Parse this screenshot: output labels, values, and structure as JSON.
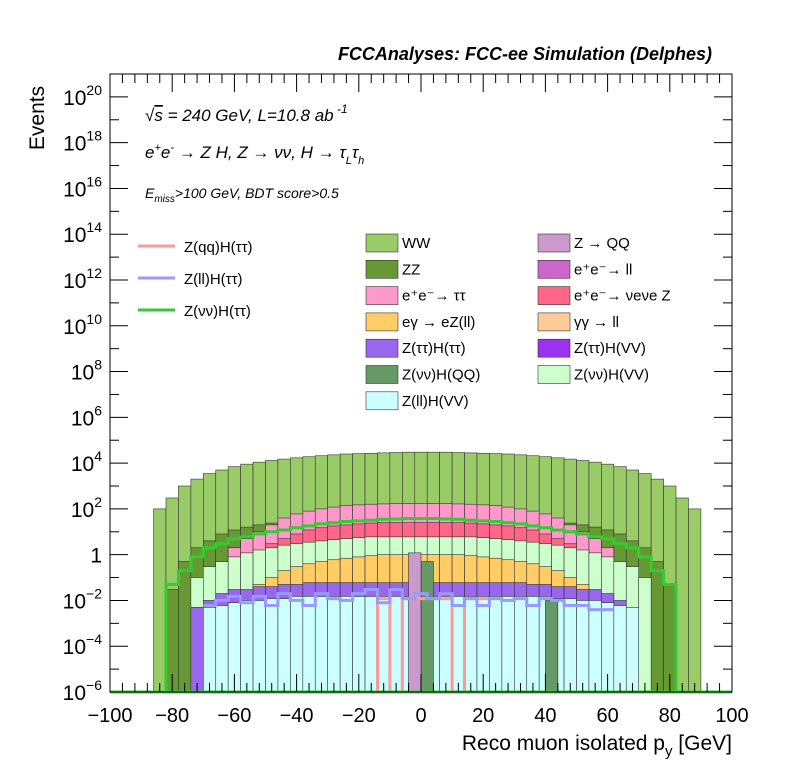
{
  "chart_data": {
    "type": "histogram",
    "title": "FCCAnalyses: FCC-ee Simulation (Delphes)",
    "annotations": {
      "energy_lumi": "√s = 240 GeV, L=10.8 ab⁻¹",
      "process": "e⁺e⁻ → Z H, Z → νν, H → τ_L τ_h",
      "selection": "E_miss>100 GeV, BDT score>0.5"
    },
    "xlabel": "Reco muon isolated p_y [GeV]",
    "ylabel": "Events",
    "xlim": [
      -100,
      100
    ],
    "ylim": [
      1e-06,
      1e+21
    ],
    "log_y": true,
    "x_ticks": [
      -100,
      -80,
      -60,
      -40,
      -20,
      0,
      20,
      40,
      60,
      80,
      100
    ],
    "x_tick_labels": [
      "−100",
      "−80",
      "−60",
      "−40",
      "−20",
      "0",
      "20",
      "40",
      "60",
      "80",
      "100"
    ],
    "y_ticks": [
      1e-06,
      0.0001,
      0.01,
      1,
      100.0,
      10000.0,
      1000000.0,
      100000000.0,
      10000000000.0,
      1000000000000.0,
      100000000000000.0,
      1e+16,
      1e+18,
      1e+20
    ],
    "y_tick_labels": [
      {
        "base": "10",
        "exp": "−6"
      },
      {
        "base": "10",
        "exp": "−4"
      },
      {
        "base": "10",
        "exp": "−2"
      },
      {
        "base": "1",
        "exp": ""
      },
      {
        "base": "10",
        "exp": "2"
      },
      {
        "base": "10",
        "exp": "4"
      },
      {
        "base": "10",
        "exp": "6"
      },
      {
        "base": "10",
        "exp": "8"
      },
      {
        "base": "10",
        "exp": "10"
      },
      {
        "base": "10",
        "exp": "12"
      },
      {
        "base": "10",
        "exp": "14"
      },
      {
        "base": "10",
        "exp": "16"
      },
      {
        "base": "10",
        "exp": "18"
      },
      {
        "base": "10",
        "exp": "20"
      }
    ],
    "bin_width": 4,
    "stack_bins": [
      -86,
      -82,
      -78,
      -74,
      -70,
      -66,
      -62,
      -58,
      -54,
      -50,
      -46,
      -42,
      -38,
      -34,
      -30,
      -26,
      -22,
      -18,
      -14,
      -10,
      -6,
      -2,
      2,
      6,
      10,
      14,
      18,
      22,
      26,
      30,
      34,
      38,
      42,
      46,
      50,
      54,
      58,
      62,
      66,
      70,
      74,
      78,
      82,
      86
    ],
    "stack_layers": [
      {
        "name": "WW",
        "color": "#99cc66",
        "tops": [
          100,
          300,
          1000,
          2000,
          3500,
          5000,
          7000,
          9000,
          11000,
          13000,
          15000,
          17000,
          19000,
          21000,
          23000,
          25000,
          26000,
          27000,
          28000,
          29000,
          30000,
          30000,
          30000,
          30000,
          29000,
          28000,
          27000,
          26000,
          25000,
          23000,
          21000,
          19000,
          17000,
          15000,
          13000,
          11000,
          9000,
          7000,
          5000,
          3500,
          2000,
          1000,
          300,
          100
        ]
      },
      {
        "name": "ZZ",
        "color": "#669933",
        "tops": [
          0,
          0.03,
          0.5,
          2,
          4,
          8,
          12,
          16,
          20,
          24,
          30,
          36,
          42,
          50,
          56,
          60,
          64,
          66,
          68,
          70,
          70,
          70,
          70,
          70,
          68,
          66,
          64,
          60,
          56,
          50,
          42,
          36,
          30,
          24,
          20,
          16,
          12,
          8,
          4,
          2,
          0.5,
          0.05,
          0,
          0
        ]
      },
      {
        "name": "e⁺e⁻→ ττ",
        "color": "#ff99cc",
        "tops": [
          0,
          0,
          0,
          0,
          0,
          0.5,
          2,
          5,
          10,
          20,
          40,
          60,
          80,
          100,
          120,
          140,
          150,
          160,
          165,
          170,
          170,
          170,
          170,
          170,
          165,
          160,
          150,
          140,
          120,
          100,
          80,
          60,
          40,
          20,
          10,
          5,
          2,
          0.5,
          0,
          0,
          0,
          0,
          0,
          0
        ]
      },
      {
        "name": "e⁺e⁻→ νeνe Z",
        "color": "#ff6688",
        "tops": [
          0,
          0,
          0,
          0,
          0,
          0,
          0.2,
          0.6,
          1.5,
          3,
          5,
          8,
          12,
          15,
          18,
          20,
          22,
          24,
          25,
          25,
          25,
          25,
          25,
          25,
          25,
          24,
          22,
          20,
          18,
          15,
          12,
          8,
          5,
          3,
          1.5,
          0.6,
          0.2,
          0,
          0,
          0,
          0,
          0,
          0,
          0
        ]
      },
      {
        "name": "Z(νν)H(VV)",
        "color": "#ccffcc",
        "tops": [
          0,
          0,
          0,
          0.1,
          0.3,
          0.5,
          0.8,
          1.2,
          1.6,
          2,
          2.6,
          3,
          3.5,
          4,
          4.5,
          5,
          5.5,
          6,
          6,
          6,
          6,
          6,
          6,
          6,
          6,
          6,
          5.5,
          5,
          4.5,
          4,
          3.5,
          3,
          2.6,
          2,
          1.6,
          1.2,
          0.8,
          0.5,
          0.3,
          0.1,
          0,
          0,
          0,
          0
        ]
      },
      {
        "name": "eγ → eZ(ll)",
        "color": "#ffcc66",
        "tops": [
          0,
          0,
          0,
          0,
          0,
          0,
          0,
          0,
          0.05,
          0.1,
          0.2,
          0.3,
          0.4,
          0.5,
          0.6,
          0.7,
          0.8,
          0.9,
          1,
          1,
          1,
          1,
          1,
          1,
          1,
          0.9,
          0.8,
          0.7,
          0.6,
          0.5,
          0.4,
          0.3,
          0.2,
          0.1,
          0.05,
          0,
          0,
          0,
          0,
          0,
          0,
          0,
          0,
          0
        ]
      },
      {
        "name": "Z(ττ)H(ττ)",
        "color": "#9966ee",
        "tops": [
          0,
          0,
          0,
          0.005,
          0.01,
          0.02,
          0.03,
          0.03,
          0.04,
          0.04,
          0.05,
          0.05,
          0.06,
          0.06,
          0.06,
          0.06,
          0.06,
          0.06,
          0.06,
          0.06,
          0.06,
          0.06,
          0.06,
          0.06,
          0.06,
          0.06,
          0.06,
          0.06,
          0.06,
          0.06,
          0.05,
          0.05,
          0.04,
          0.04,
          0.03,
          0.03,
          0.02,
          0.01,
          0.005,
          0,
          0,
          0,
          0,
          0
        ]
      },
      {
        "name": "Z(ll)H(VV)",
        "color": "#ccffff",
        "tops": [
          0,
          0,
          0,
          0,
          0.005,
          0.006,
          0.008,
          0.01,
          0.01,
          0.012,
          0.012,
          0.015,
          0.015,
          0.015,
          0.015,
          0.015,
          0.015,
          0.015,
          0.015,
          0.015,
          0.015,
          0.015,
          0.015,
          0.015,
          0.015,
          0.015,
          0.015,
          0.015,
          0.015,
          0.015,
          0.015,
          0.015,
          0.012,
          0.012,
          0.01,
          0.01,
          0.008,
          0.006,
          0.005,
          0,
          0,
          0,
          0,
          0
        ]
      }
    ],
    "spikes": [
      {
        "name": "Z(νν)H(QQ)",
        "color": "#669966",
        "x": 2,
        "top": 0.5
      },
      {
        "name": "Z(νν)H(QQ)",
        "color": "#669966",
        "x": 42,
        "top": 0.01
      },
      {
        "name": "Z → QQ",
        "color": "#cc99cc",
        "x": -2,
        "top": 1.2
      }
    ],
    "lines": [
      {
        "name": "Z(qq)H(ττ)",
        "color": "#ff9999",
        "x": [
          -18,
          -14,
          -14,
          -10,
          -10,
          -6,
          -6,
          10,
          10,
          14,
          14,
          18
        ],
        "y": [
          1e-06,
          1e-06,
          0.012,
          0.012,
          1e-06,
          1e-06,
          0.012,
          0.012,
          1e-06,
          1e-06,
          0.012,
          0.012
        ]
      },
      {
        "name": "Z(ll)H(ττ)",
        "color": "#9999ff",
        "x": [
          -70,
          -66,
          -62,
          -58,
          -54,
          -50,
          -46,
          -42,
          -38,
          -34,
          -30,
          -26,
          -22,
          -18,
          -14,
          -10,
          -6,
          -2,
          2,
          6,
          10,
          14,
          18,
          22,
          26,
          30,
          34,
          38,
          42,
          46,
          50,
          54,
          58
        ],
        "y": [
          0.006,
          0.01,
          0.015,
          0.008,
          0.015,
          0.006,
          0.02,
          0.01,
          0.006,
          0.02,
          0.012,
          0.01,
          0.02,
          0.03,
          0.008,
          0.03,
          0.012,
          0.02,
          0.012,
          0.02,
          0.006,
          0.012,
          0.006,
          0.012,
          0.01,
          0.012,
          0.006,
          0.012,
          0.01,
          0.006,
          0.006,
          0.004,
          0.004
        ]
      },
      {
        "name": "Z(νν)H(ττ)",
        "color": "#33cc33",
        "x": [
          -86,
          -82,
          -78,
          -74,
          -70,
          -66,
          -62,
          -58,
          -54,
          -50,
          -46,
          -42,
          -38,
          -34,
          -30,
          -26,
          -22,
          -18,
          -14,
          -10,
          -6,
          -2,
          2,
          6,
          10,
          14,
          18,
          22,
          26,
          30,
          34,
          38,
          42,
          46,
          50,
          54,
          58,
          62,
          66,
          70,
          74,
          78,
          82
        ],
        "y": [
          1e-06,
          0.05,
          0.2,
          0.8,
          2,
          3,
          5,
          6,
          8,
          10,
          12,
          15,
          18,
          22,
          25,
          28,
          30,
          32,
          35,
          36,
          38,
          38,
          38,
          36,
          35,
          32,
          30,
          28,
          25,
          22,
          18,
          15,
          12,
          10,
          8,
          6,
          5,
          3,
          2,
          0.8,
          0.2,
          0.05,
          1e-06
        ]
      }
    ],
    "legend_left": [
      {
        "label": "Z(qq)H(ττ)",
        "color": "#ff9999",
        "kind": "line"
      },
      {
        "label": "Z(ll)H(ττ)",
        "color": "#9999ff",
        "kind": "line"
      },
      {
        "label": "Z(νν)H(ττ)",
        "color": "#33cc33",
        "kind": "line"
      }
    ],
    "legend_mid": [
      {
        "label": "WW",
        "color": "#99cc66"
      },
      {
        "label": "ZZ",
        "color": "#669933"
      },
      {
        "label": "e⁺e⁻→ ττ",
        "color": "#ff99cc"
      },
      {
        "label": "eγ → eZ(ll)",
        "color": "#ffcc66"
      },
      {
        "label": "Z(ττ)H(ττ)",
        "color": "#9966ee"
      },
      {
        "label": "Z(νν)H(QQ)",
        "color": "#669966"
      },
      {
        "label": "Z(ll)H(VV)",
        "color": "#ccffff"
      }
    ],
    "legend_right": [
      {
        "label": "Z → QQ",
        "color": "#cc99cc"
      },
      {
        "label": "e⁺e⁻→ ll",
        "color": "#cc66cc"
      },
      {
        "label": "e⁺e⁻→ νeνe Z",
        "color": "#ff6688"
      },
      {
        "label": "γγ → ll",
        "color": "#ffcc99"
      },
      {
        "label": "Z(ττ)H(VV)",
        "color": "#9933ee"
      },
      {
        "label": "Z(νν)H(VV)",
        "color": "#ccffcc"
      }
    ]
  }
}
